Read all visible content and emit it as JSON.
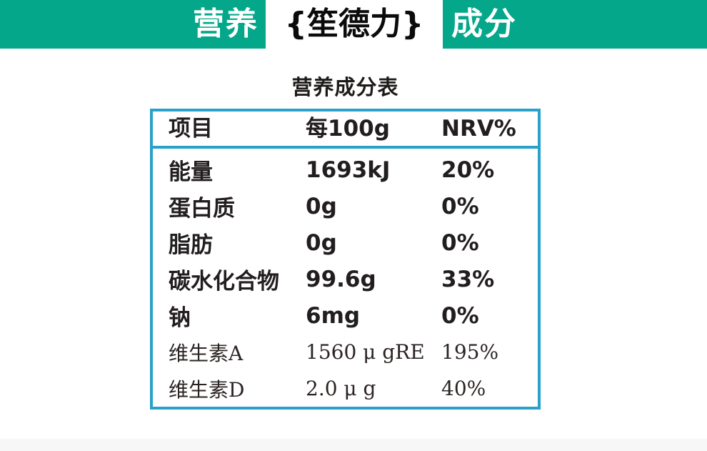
{
  "banner": {
    "left_label": "营养",
    "brand": "{笙德力}",
    "right_label": "成分"
  },
  "table": {
    "title": "营养成分表",
    "columns": [
      "项目",
      "每100g",
      "NRV%"
    ],
    "rows": [
      {
        "item": "能量",
        "per100g": "1693kJ",
        "nrv": "20%",
        "style": "sans"
      },
      {
        "item": "蛋白质",
        "per100g": "0g",
        "nrv": "0%",
        "style": "sans"
      },
      {
        "item": "脂肪",
        "per100g": "0g",
        "nrv": "0%",
        "style": "sans"
      },
      {
        "item": "碳水化合物",
        "per100g": "99.6g",
        "nrv": "33%",
        "style": "sans"
      },
      {
        "item": "钠",
        "per100g": "6mg",
        "nrv": "0%",
        "style": "sans"
      },
      {
        "item": "维生素A",
        "per100g": "1560 μ gRE",
        "nrv": "195%",
        "style": "serif"
      },
      {
        "item": "维生素D",
        "per100g": "2.0 μ g",
        "nrv": "40%",
        "style": "serif"
      }
    ]
  },
  "colors": {
    "brand_green": "#05a78b",
    "table_border_blue": "#29a2ca",
    "text_black": "#221e1f",
    "bottom_strip_gray": "#f7f7f7"
  }
}
